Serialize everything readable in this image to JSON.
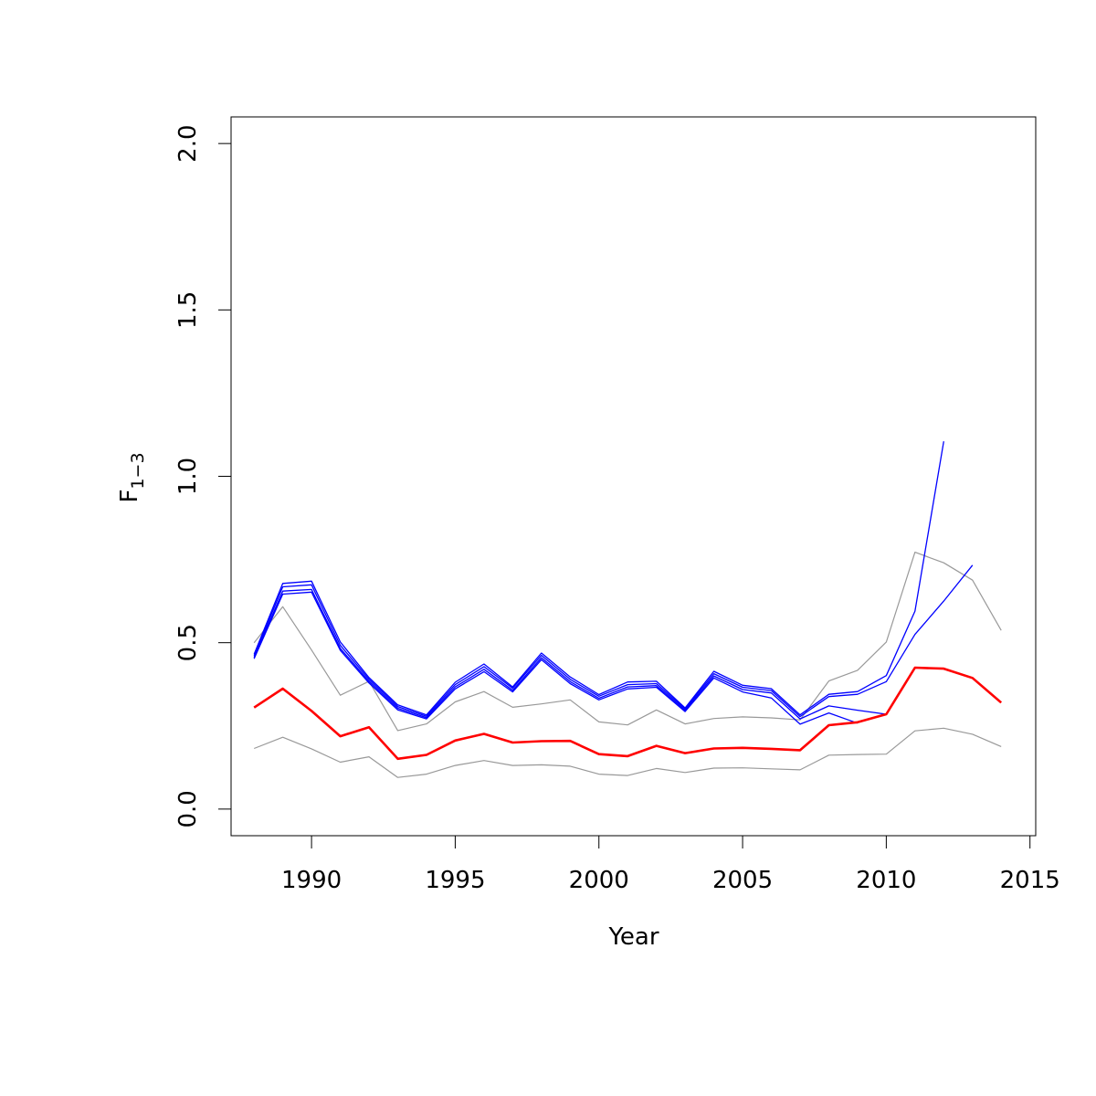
{
  "chart_data": {
    "type": "line",
    "title": "",
    "xlabel": "Year",
    "ylabel_main": "F",
    "ylabel_sub": "1−3",
    "xlim": [
      1987.2,
      2015.2
    ],
    "ylim": [
      -0.08,
      2.08
    ],
    "x_ticks": [
      1990,
      1995,
      2000,
      2005,
      2010,
      2015
    ],
    "y_ticks": [
      0.0,
      0.5,
      1.0,
      1.5,
      2.0
    ],
    "y_tick_labels": [
      "0.0",
      "0.5",
      "1.0",
      "1.5",
      "2.0"
    ],
    "grid": false,
    "legend": "none",
    "colors": {
      "estimate": "#ff0000",
      "bounds": "#999999",
      "retro": "#0000ff"
    },
    "estimate": {
      "x": [
        1988,
        1989,
        1990,
        1991,
        1992,
        1993,
        1994,
        1995,
        1996,
        1997,
        1998,
        1999,
        2000,
        2001,
        2002,
        2003,
        2004,
        2005,
        2006,
        2007,
        2008,
        2009,
        2010,
        2011,
        2012,
        2013,
        2014
      ],
      "y": [
        0.305,
        0.362,
        0.295,
        0.219,
        0.246,
        0.151,
        0.163,
        0.206,
        0.226,
        0.2,
        0.204,
        0.205,
        0.165,
        0.159,
        0.19,
        0.168,
        0.182,
        0.184,
        0.181,
        0.177,
        0.252,
        0.261,
        0.285,
        0.425,
        0.422,
        0.394,
        0.32
      ]
    },
    "upper_bound": {
      "x": [
        1988,
        1989,
        1990,
        1991,
        1992,
        1993,
        1994,
        1995,
        1996,
        1997,
        1998,
        1999,
        2000,
        2001,
        2002,
        2003,
        2004,
        2005,
        2006,
        2007,
        2008,
        2009,
        2010,
        2011,
        2012,
        2013,
        2014
      ],
      "y": [
        0.5,
        0.608,
        0.478,
        0.342,
        0.384,
        0.236,
        0.256,
        0.322,
        0.353,
        0.306,
        0.316,
        0.328,
        0.262,
        0.253,
        0.298,
        0.256,
        0.272,
        0.277,
        0.274,
        0.268,
        0.385,
        0.417,
        0.502,
        0.772,
        0.74,
        0.688,
        0.537
      ]
    },
    "lower_bound": {
      "x": [
        1988,
        1989,
        1990,
        1991,
        1992,
        1993,
        1994,
        1995,
        1996,
        1997,
        1998,
        1999,
        2000,
        2001,
        2002,
        2003,
        2004,
        2005,
        2006,
        2007,
        2008,
        2009,
        2010,
        2011,
        2012,
        2013,
        2014
      ],
      "y": [
        0.182,
        0.216,
        0.181,
        0.141,
        0.157,
        0.095,
        0.105,
        0.131,
        0.146,
        0.131,
        0.133,
        0.129,
        0.105,
        0.101,
        0.122,
        0.11,
        0.123,
        0.124,
        0.121,
        0.118,
        0.162,
        0.164,
        0.165,
        0.235,
        0.243,
        0.225,
        0.188
      ]
    },
    "retro_series": [
      {
        "x": [
          1988,
          1989,
          1990,
          1991,
          1992,
          1993,
          1994,
          1995,
          1996,
          1997,
          1998,
          1999,
          2000,
          2001,
          2002,
          2003,
          2004,
          2005,
          2006,
          2007,
          2008,
          2009,
          2010,
          2011,
          2012
        ],
        "y": [
          0.465,
          0.678,
          0.685,
          0.502,
          0.395,
          0.313,
          0.283,
          0.381,
          0.436,
          0.367,
          0.469,
          0.397,
          0.344,
          0.382,
          0.384,
          0.304,
          0.414,
          0.372,
          0.362,
          0.283,
          0.345,
          0.353,
          0.401,
          0.595,
          1.105
        ]
      },
      {
        "x": [
          1988,
          1989,
          1990,
          1991,
          1992,
          1993,
          1994,
          1995,
          1996,
          1997,
          1998,
          1999,
          2000,
          2001,
          2002,
          2003,
          2004,
          2005,
          2006,
          2007,
          2008,
          2009,
          2010,
          2011,
          2012,
          2013
        ],
        "y": [
          0.46,
          0.668,
          0.674,
          0.492,
          0.39,
          0.308,
          0.279,
          0.374,
          0.428,
          0.363,
          0.462,
          0.39,
          0.339,
          0.374,
          0.377,
          0.301,
          0.407,
          0.366,
          0.356,
          0.278,
          0.338,
          0.345,
          0.383,
          0.525,
          0.625,
          0.733
        ]
      },
      {
        "x": [
          1988,
          1989,
          1990,
          1991,
          1992,
          1993,
          1994,
          1995,
          1996,
          1997,
          1998,
          1999,
          2000,
          2001,
          2002,
          2003,
          2004,
          2005,
          2006,
          2007,
          2008,
          2009,
          2010
        ],
        "y": [
          0.456,
          0.655,
          0.66,
          0.483,
          0.384,
          0.303,
          0.275,
          0.367,
          0.42,
          0.357,
          0.455,
          0.383,
          0.333,
          0.367,
          0.371,
          0.297,
          0.4,
          0.359,
          0.349,
          0.271,
          0.31,
          0.297,
          0.285
        ]
      },
      {
        "x": [
          1988,
          1989,
          1990,
          1991,
          1992,
          1993,
          1994,
          1995,
          1996,
          1997,
          1998,
          1999,
          2000,
          2001,
          2002,
          2003,
          2004,
          2005,
          2006,
          2007,
          2008,
          2009
        ],
        "y": [
          0.452,
          0.646,
          0.652,
          0.477,
          0.379,
          0.298,
          0.271,
          0.361,
          0.413,
          0.352,
          0.449,
          0.377,
          0.328,
          0.361,
          0.366,
          0.293,
          0.394,
          0.352,
          0.334,
          0.255,
          0.289,
          0.258
        ]
      }
    ]
  }
}
